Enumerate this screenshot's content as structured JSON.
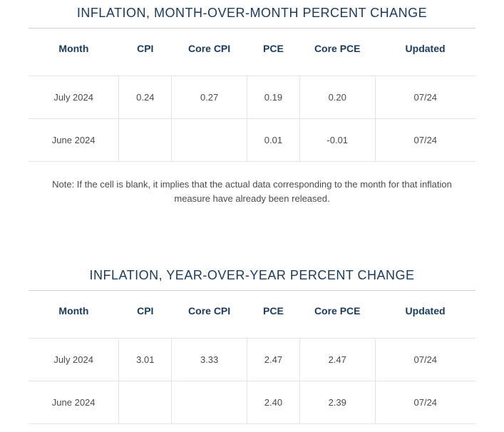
{
  "colors": {
    "title": "#1a3a5c",
    "header_text": "#1a3a5c",
    "cell_text": "#4a4a4a",
    "border_top": "#cfcfcf",
    "cell_border": "#e3e3e3",
    "background": "#ffffff"
  },
  "fontsizes": {
    "title": 18,
    "header": 14,
    "cell": 13,
    "note": 13
  },
  "mom": {
    "title": "INFLATION, MONTH-OVER-MONTH PERCENT CHANGE",
    "columns": [
      "Month",
      "CPI",
      "Core CPI",
      "PCE",
      "Core PCE",
      "Updated"
    ],
    "rows": [
      {
        "month": "July 2024",
        "cpi": "0.24",
        "core_cpi": "0.27",
        "pce": "0.19",
        "core_pce": "0.20",
        "updated": "07/24"
      },
      {
        "month": "June 2024",
        "cpi": "",
        "core_cpi": "",
        "pce": "0.01",
        "core_pce": "-0.01",
        "updated": "07/24"
      }
    ],
    "note": "Note: If the cell is blank, it implies that the actual data corresponding to the month for that inflation measure have already been released."
  },
  "yoy": {
    "title": "INFLATION, YEAR-OVER-YEAR PERCENT CHANGE",
    "columns": [
      "Month",
      "CPI",
      "Core CPI",
      "PCE",
      "Core PCE",
      "Updated"
    ],
    "rows": [
      {
        "month": "July 2024",
        "cpi": "3.01",
        "core_cpi": "3.33",
        "pce": "2.47",
        "core_pce": "2.47",
        "updated": "07/24"
      },
      {
        "month": "June 2024",
        "cpi": "",
        "core_cpi": "",
        "pce": "2.40",
        "core_pce": "2.39",
        "updated": "07/24"
      }
    ]
  }
}
